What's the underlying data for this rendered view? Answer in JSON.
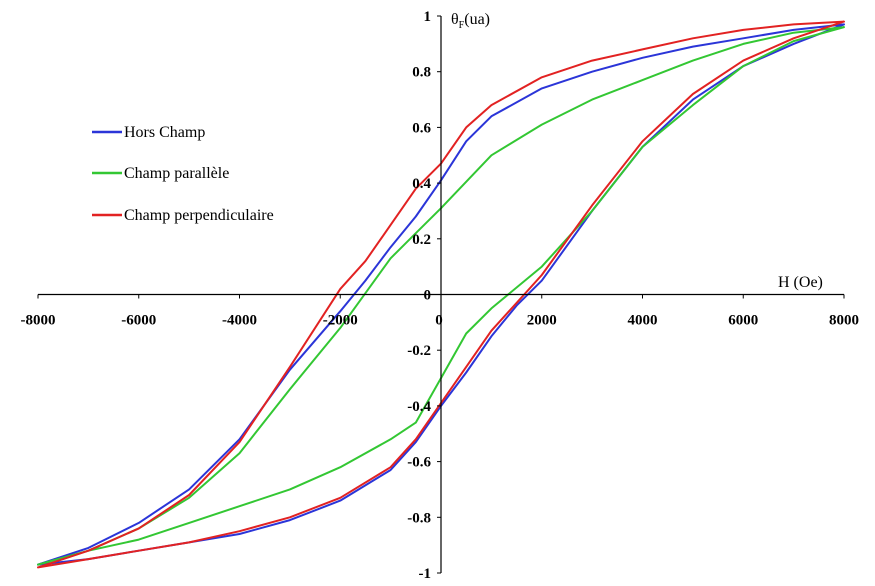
{
  "chart_data": {
    "type": "line",
    "title": "",
    "xlabel": "H (Oe)",
    "ylabel_main": "θ",
    "ylabel_sub": "F",
    "ylabel_unit": "(ua)",
    "xlim": [
      -8000,
      8000
    ],
    "ylim": [
      -1,
      1
    ],
    "x_ticks": [
      -8000,
      -6000,
      -4000,
      -2000,
      0,
      2000,
      4000,
      6000,
      8000
    ],
    "x_tick_labels": [
      "-8000",
      "-6000",
      "-4000",
      "-2000",
      "0",
      "2000",
      "4000",
      "6000",
      "8000"
    ],
    "y_ticks": [
      -1,
      -0.8,
      -0.6,
      -0.4,
      -0.2,
      0,
      0.2,
      0.4,
      0.6,
      0.8,
      1
    ],
    "y_tick_labels": [
      "-1",
      "-0.8",
      "-0.6",
      "-0.4",
      "-0.2",
      "0",
      "0.2",
      "0.4",
      "0.6",
      "0.8",
      "1"
    ],
    "grid": false,
    "legend_position": "left",
    "series": [
      {
        "name": "Hors Champ",
        "color": "#2b35d8",
        "x": [
          -8000,
          -7000,
          -6000,
          -5000,
          -4000,
          -3000,
          -2000,
          -1500,
          -1000,
          -500,
          0,
          500,
          1000,
          2000,
          3000,
          4000,
          5000,
          6000,
          7000,
          8000,
          7000,
          6000,
          5000,
          4000,
          3000,
          2000,
          1500,
          1000,
          500,
          0,
          -500,
          -1000,
          -2000,
          -3000,
          -4000,
          -5000,
          -6000,
          -7000,
          -8000
        ],
        "y": [
          -0.97,
          -0.91,
          -0.82,
          -0.7,
          -0.52,
          -0.27,
          -0.06,
          0.05,
          0.17,
          0.28,
          0.41,
          0.55,
          0.64,
          0.74,
          0.8,
          0.85,
          0.89,
          0.92,
          0.95,
          0.97,
          0.9,
          0.82,
          0.7,
          0.53,
          0.3,
          0.05,
          -0.04,
          -0.15,
          -0.28,
          -0.4,
          -0.53,
          -0.63,
          -0.74,
          -0.81,
          -0.86,
          -0.89,
          -0.92,
          -0.95,
          -0.97
        ]
      },
      {
        "name": "Champ parallèle",
        "color": "#33c733",
        "x": [
          -8000,
          -7000,
          -6000,
          -5000,
          -4000,
          -3000,
          -2000,
          -1000,
          -500,
          0,
          1000,
          2000,
          3000,
          4000,
          5000,
          6000,
          7000,
          8000,
          7000,
          6000,
          5000,
          4000,
          3000,
          2000,
          1000,
          500,
          0,
          -500,
          -1000,
          -2000,
          -3000,
          -4000,
          -5000,
          -6000,
          -7000,
          -8000
        ],
        "y": [
          -0.97,
          -0.92,
          -0.84,
          -0.73,
          -0.57,
          -0.34,
          -0.12,
          0.13,
          0.22,
          0.31,
          0.5,
          0.61,
          0.7,
          0.77,
          0.84,
          0.9,
          0.94,
          0.96,
          0.91,
          0.82,
          0.68,
          0.53,
          0.3,
          0.1,
          -0.05,
          -0.14,
          -0.3,
          -0.46,
          -0.52,
          -0.62,
          -0.7,
          -0.76,
          -0.82,
          -0.88,
          -0.92,
          -0.97
        ]
      },
      {
        "name": "Champ perpendiculaire",
        "color": "#e22222",
        "x": [
          -8000,
          -7000,
          -6000,
          -5000,
          -4000,
          -3000,
          -2000,
          -1500,
          -1000,
          -500,
          0,
          500,
          1000,
          2000,
          3000,
          4000,
          5000,
          6000,
          7000,
          8000,
          7000,
          6000,
          5000,
          4000,
          3000,
          2000,
          1500,
          1000,
          500,
          0,
          -500,
          -1000,
          -2000,
          -3000,
          -4000,
          -5000,
          -6000,
          -7000,
          -8000
        ],
        "y": [
          -0.98,
          -0.92,
          -0.84,
          -0.72,
          -0.53,
          -0.26,
          0.02,
          0.12,
          0.25,
          0.38,
          0.47,
          0.6,
          0.68,
          0.78,
          0.84,
          0.88,
          0.92,
          0.95,
          0.97,
          0.98,
          0.92,
          0.84,
          0.72,
          0.55,
          0.32,
          0.07,
          -0.03,
          -0.13,
          -0.26,
          -0.39,
          -0.52,
          -0.62,
          -0.73,
          -0.8,
          -0.85,
          -0.89,
          -0.92,
          -0.95,
          -0.98
        ]
      }
    ]
  }
}
